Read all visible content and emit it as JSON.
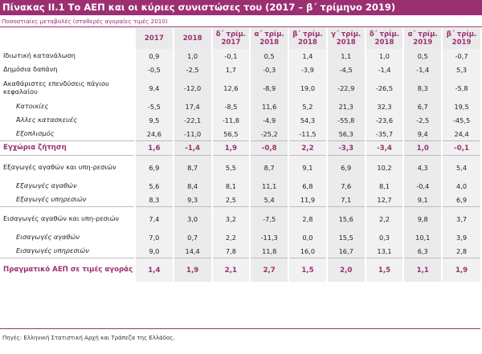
{
  "title": "Πίνακας ΙΙ.1 Το ΑΕΠ και οι κύριες συνιστώσες του (2017 – β΄ τρίμηνο 2019)",
  "subtitle": "Ποσοστιαίες μεταβολές (σταθερές αγοραίες τιμές 2010)",
  "columns": [
    {
      "l1": "2017",
      "l2": ""
    },
    {
      "l1": "2018",
      "l2": ""
    },
    {
      "l1": "δ΄ τρίμ.",
      "l2": "2017"
    },
    {
      "l1": "α΄ τρίμ.",
      "l2": "2018"
    },
    {
      "l1": "β΄ τρίμ.",
      "l2": "2018"
    },
    {
      "l1": "γ΄ τρίμ.",
      "l2": "2018"
    },
    {
      "l1": "δ΄ τρίμ.",
      "l2": "2018"
    },
    {
      "l1": "α΄ τρίμ.",
      "l2": "2019"
    },
    {
      "l1": "β΄ τρίμ.",
      "l2": "2019"
    }
  ],
  "rows": [
    {
      "label": "Ιδιωτική κατανάλωση",
      "values": [
        "0,9",
        "1,0",
        "-0,1",
        "0,5",
        "1,4",
        "1,1",
        "1,0",
        "0,5",
        "-0,7"
      ]
    },
    {
      "label": "Δημόσια δαπάνη",
      "values": [
        "-0,5",
        "-2,5",
        "1,7",
        "-0,3",
        "-3,9",
        "-4,5",
        "-1,4",
        "-1,4",
        "5,3"
      ]
    },
    {
      "label": "Ακαθάριστες επενδύσεις πάγιου κεφαλαίου",
      "values": [
        "9,4",
        "-12,0",
        "12,6",
        "-8,9",
        "19,0",
        "-22,9",
        "-26,5",
        "8,3",
        "-5,8"
      ]
    },
    {
      "label": "Κατοικίες",
      "values": [
        "-5,5",
        "17,4",
        "-8,5",
        "11,6",
        "5,2",
        "21,3",
        "32,3",
        "6,7",
        "19,5"
      ]
    },
    {
      "label": "Άλλες κατασκευές",
      "values": [
        "9,5",
        "-22,1",
        "-11,8",
        "-4,9",
        "54,3",
        "-55,8",
        "-23,6",
        "-2,5",
        "-45,5"
      ]
    },
    {
      "label": "Εξοπλισμός",
      "values": [
        "24,6",
        "-11,0",
        "56,5",
        "-25,2",
        "-11,5",
        "56,3",
        "-35,7",
        "9,4",
        "24,4"
      ]
    },
    {
      "label": "Εγχώρια ζήτηση",
      "values": [
        "1,6",
        "-1,4",
        "1,9",
        "-0,8",
        "2,2",
        "-3,3",
        "-3,4",
        "1,0",
        "-0,1"
      ]
    },
    {
      "label": "Εξαγωγές αγαθών και υπη-ρεσιών",
      "values": [
        "6,9",
        "8,7",
        "5,5",
        "8,7",
        "9,1",
        "6,9",
        "10,2",
        "4,3",
        "5,4"
      ]
    },
    {
      "label": "Εξαγωγές αγαθών",
      "values": [
        "5,6",
        "8,4",
        "8,1",
        "11,1",
        "6,8",
        "7,6",
        "8,1",
        "-0,4",
        "4,0"
      ]
    },
    {
      "label": "Εξαγωγές υπηρεσιών",
      "values": [
        "8,3",
        "9,3",
        "2,5",
        "5,4",
        "11,9",
        "7,1",
        "12,7",
        "9,1",
        "6,9"
      ]
    },
    {
      "label": "Εισαγωγές αγαθών και υπη-ρεσιών",
      "values": [
        "7,4",
        "3,0",
        "3,2",
        "-7,5",
        "2,8",
        "15,6",
        "2,2",
        "9,8",
        "3,7"
      ]
    },
    {
      "label": "Εισαγωγές αγαθών",
      "values": [
        "7,0",
        "0,7",
        "2,2",
        "-11,3",
        "0,0",
        "15,5",
        "0,3",
        "10,1",
        "3,9"
      ]
    },
    {
      "label": "Εισαγωγές υπηρεσιών",
      "values": [
        "9,0",
        "14,4",
        "7,8",
        "11,8",
        "16,0",
        "16,7",
        "13,1",
        "6,3",
        "2,8"
      ]
    },
    {
      "label": "Πραγματικό ΑΕΠ σε τιμές αγοράς",
      "values": [
        "1,4",
        "1,9",
        "2,1",
        "2,7",
        "1,5",
        "2,0",
        "1,5",
        "1,1",
        "1,9"
      ]
    }
  ],
  "source": "Πηγές: Ελληνική Στατιστική Αρχή και Τράπεζα της Ελλάδος.",
  "colors": {
    "accent": "#9c2f72",
    "header_bg": "#eaeaea"
  }
}
